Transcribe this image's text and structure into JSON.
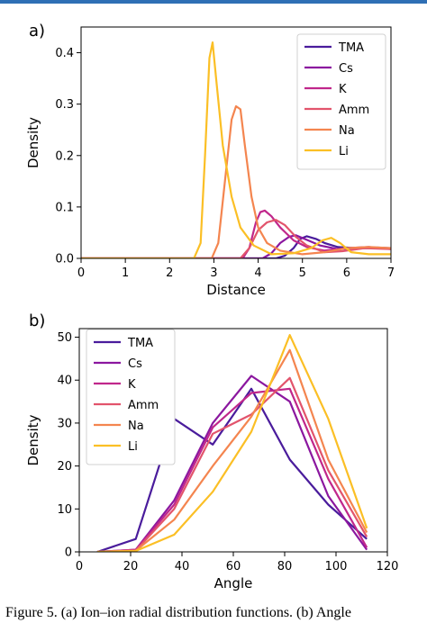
{
  "colors": {
    "topbar": "#2f6fb5",
    "series": {
      "TMA": "#4a1c9c",
      "Cs": "#8b179f",
      "K": "#c0278b",
      "Amm": "#e2546c",
      "Na": "#f4854f",
      "Li": "#fbbf25"
    }
  },
  "caption": "Figure 5. (a) Ion–ion radial distribution functions. (b) Angle",
  "chart_data": [
    {
      "panel_label": "a)",
      "type": "line",
      "xlabel": "Distance",
      "ylabel": "Density",
      "xlim": [
        0,
        7
      ],
      "ylim": [
        0,
        0.45
      ],
      "xticks": [
        "0",
        "1",
        "2",
        "3",
        "4",
        "5",
        "6",
        "7"
      ],
      "yticks": [
        "0.0",
        "0.1",
        "0.2",
        "0.3",
        "0.4"
      ],
      "legend_position": "top-right",
      "series": [
        {
          "name": "TMA",
          "points": [
            [
              0,
              0
            ],
            [
              4.4,
              0
            ],
            [
              4.6,
              0.005
            ],
            [
              4.8,
              0.02
            ],
            [
              4.95,
              0.038
            ],
            [
              5.1,
              0.043
            ],
            [
              5.3,
              0.038
            ],
            [
              5.5,
              0.03
            ],
            [
              5.8,
              0.022
            ],
            [
              6.2,
              0.02
            ],
            [
              6.6,
              0.02
            ],
            [
              7,
              0.02
            ]
          ]
        },
        {
          "name": "Cs",
          "points": [
            [
              0,
              0
            ],
            [
              4.1,
              0
            ],
            [
              4.3,
              0.01
            ],
            [
              4.5,
              0.03
            ],
            [
              4.7,
              0.042
            ],
            [
              4.85,
              0.045
            ],
            [
              5.1,
              0.036
            ],
            [
              5.4,
              0.025
            ],
            [
              5.8,
              0.018
            ],
            [
              6.3,
              0.02
            ],
            [
              6.7,
              0.021
            ],
            [
              7,
              0.02
            ]
          ]
        },
        {
          "name": "K",
          "points": [
            [
              0,
              0
            ],
            [
              3.65,
              0
            ],
            [
              3.8,
              0.02
            ],
            [
              3.95,
              0.07
            ],
            [
              4.05,
              0.09
            ],
            [
              4.15,
              0.093
            ],
            [
              4.3,
              0.082
            ],
            [
              4.5,
              0.06
            ],
            [
              4.8,
              0.035
            ],
            [
              5.1,
              0.022
            ],
            [
              5.5,
              0.015
            ],
            [
              6,
              0.02
            ],
            [
              6.5,
              0.022
            ],
            [
              7,
              0.018
            ]
          ]
        },
        {
          "name": "Amm",
          "points": [
            [
              0,
              0
            ],
            [
              3.6,
              0
            ],
            [
              3.8,
              0.02
            ],
            [
              4.0,
              0.055
            ],
            [
              4.2,
              0.07
            ],
            [
              4.4,
              0.075
            ],
            [
              4.6,
              0.065
            ],
            [
              4.85,
              0.042
            ],
            [
              5.1,
              0.025
            ],
            [
              5.5,
              0.012
            ],
            [
              5.9,
              0.014
            ],
            [
              6.4,
              0.02
            ],
            [
              7,
              0.018
            ]
          ]
        },
        {
          "name": "Na",
          "points": [
            [
              0,
              0
            ],
            [
              2.95,
              0
            ],
            [
              3.1,
              0.03
            ],
            [
              3.25,
              0.15
            ],
            [
              3.4,
              0.27
            ],
            [
              3.5,
              0.296
            ],
            [
              3.6,
              0.29
            ],
            [
              3.7,
              0.22
            ],
            [
              3.85,
              0.12
            ],
            [
              4.0,
              0.06
            ],
            [
              4.2,
              0.03
            ],
            [
              4.5,
              0.015
            ],
            [
              5.0,
              0.008
            ],
            [
              5.5,
              0.012
            ],
            [
              6.0,
              0.02
            ],
            [
              6.5,
              0.022
            ],
            [
              7,
              0.02
            ]
          ]
        },
        {
          "name": "Li",
          "points": [
            [
              0,
              0
            ],
            [
              2.55,
              0
            ],
            [
              2.7,
              0.03
            ],
            [
              2.8,
              0.2
            ],
            [
              2.9,
              0.39
            ],
            [
              2.97,
              0.42
            ],
            [
              3.05,
              0.35
            ],
            [
              3.2,
              0.22
            ],
            [
              3.4,
              0.12
            ],
            [
              3.6,
              0.06
            ],
            [
              3.9,
              0.025
            ],
            [
              4.3,
              0.008
            ],
            [
              4.8,
              0.01
            ],
            [
              5.2,
              0.02
            ],
            [
              5.45,
              0.035
            ],
            [
              5.65,
              0.04
            ],
            [
              5.85,
              0.03
            ],
            [
              6.1,
              0.012
            ],
            [
              6.5,
              0.008
            ],
            [
              7,
              0.008
            ]
          ]
        }
      ]
    },
    {
      "panel_label": "b)",
      "type": "line",
      "xlabel": "Angle",
      "ylabel": "Density",
      "xlim": [
        0,
        120
      ],
      "ylim": [
        0,
        52
      ],
      "xticks": [
        "0",
        "20",
        "40",
        "60",
        "80",
        "100",
        "120"
      ],
      "yticks": [
        "0",
        "10",
        "20",
        "30",
        "40",
        "50"
      ],
      "legend_position": "top-left",
      "series": [
        {
          "name": "TMA",
          "points": [
            [
              7,
              0
            ],
            [
              22,
              3
            ],
            [
              37,
              31
            ],
            [
              52,
              25
            ],
            [
              67,
              38
            ],
            [
              82,
              21.5
            ],
            [
              97,
              11
            ],
            [
              112,
              3
            ]
          ]
        },
        {
          "name": "Cs",
          "points": [
            [
              7,
              0
            ],
            [
              22,
              0.5
            ],
            [
              37,
              12
            ],
            [
              52,
              30
            ],
            [
              67,
              41
            ],
            [
              82,
              35
            ],
            [
              97,
              13
            ],
            [
              112,
              0.5
            ]
          ]
        },
        {
          "name": "K",
          "points": [
            [
              7,
              0
            ],
            [
              22,
              0.5
            ],
            [
              37,
              11
            ],
            [
              52,
              29
            ],
            [
              67,
              37
            ],
            [
              82,
              38
            ],
            [
              97,
              17
            ],
            [
              112,
              1
            ]
          ]
        },
        {
          "name": "Amm",
          "points": [
            [
              7,
              0
            ],
            [
              22,
              0.3
            ],
            [
              37,
              10
            ],
            [
              52,
              27.5
            ],
            [
              67,
              32
            ],
            [
              82,
              40.5
            ],
            [
              97,
              19
            ],
            [
              112,
              3.5
            ]
          ]
        },
        {
          "name": "Na",
          "points": [
            [
              7,
              0
            ],
            [
              22,
              0.3
            ],
            [
              37,
              7.5
            ],
            [
              52,
              20
            ],
            [
              67,
              31.5
            ],
            [
              82,
              47
            ],
            [
              97,
              21.5
            ],
            [
              112,
              4.5
            ]
          ]
        },
        {
          "name": "Li",
          "points": [
            [
              7,
              0
            ],
            [
              22,
              0.2
            ],
            [
              37,
              4
            ],
            [
              52,
              14
            ],
            [
              67,
              28
            ],
            [
              82,
              50.5
            ],
            [
              97,
              31
            ],
            [
              112,
              5.5
            ]
          ]
        }
      ]
    }
  ]
}
